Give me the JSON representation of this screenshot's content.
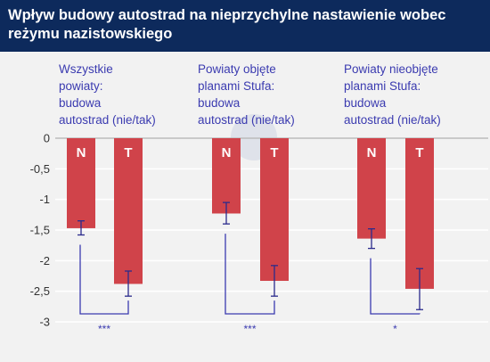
{
  "header": {
    "title": "Wpływ budowy autostrad na nieprzychylne nastawienie wobec reżymu nazistowskiego"
  },
  "colors": {
    "header_bg": "#0d2a5c",
    "background": "#f2f2f2",
    "bar": "#d0434a",
    "bar_label": "#ffffff",
    "accent": "#3b3bb0",
    "error_bar": "#2b2b8c",
    "axis_text": "#333333",
    "grid": "#ffffff",
    "watermark": "#dfe2ea"
  },
  "chart_data": {
    "type": "bar",
    "title": "Wpływ budowy autostrad na nieprzychylne nastawienie wobec reżymu nazistowskiego",
    "ylim": [
      -3,
      0
    ],
    "yticks": [
      0,
      -0.5,
      -1,
      -1.5,
      -2,
      -2.5,
      -3
    ],
    "ytick_labels": [
      "0",
      "-0,5",
      "-1",
      "-1,5",
      "-2",
      "-2,5",
      "-3"
    ],
    "grid": true,
    "groups": [
      {
        "label_lines": [
          "Wszystkie",
          "powiaty:",
          "budowa",
          "autostrad (nie/tak)"
        ],
        "bars": [
          {
            "label": "N",
            "value": -1.47,
            "err_low": -1.58,
            "err_high": -1.35
          },
          {
            "label": "T",
            "value": -2.38,
            "err_low": -2.58,
            "err_high": -2.17
          }
        ],
        "significance": "***"
      },
      {
        "label_lines": [
          "Powiaty objęte",
          "planami Stufa:",
          "budowa",
          "autostrad (nie/tak)"
        ],
        "bars": [
          {
            "label": "N",
            "value": -1.23,
            "err_low": -1.4,
            "err_high": -1.05
          },
          {
            "label": "T",
            "value": -2.33,
            "err_low": -2.58,
            "err_high": -2.08
          }
        ],
        "significance": "***"
      },
      {
        "label_lines": [
          "Powiaty nieobjęte",
          "planami Stufa:",
          "budowa",
          "autostrad (nie/tak)"
        ],
        "bars": [
          {
            "label": "N",
            "value": -1.64,
            "err_low": -1.8,
            "err_high": -1.48
          },
          {
            "label": "T",
            "value": -2.46,
            "err_low": -2.8,
            "err_high": -2.13
          }
        ],
        "significance": "*"
      }
    ]
  }
}
